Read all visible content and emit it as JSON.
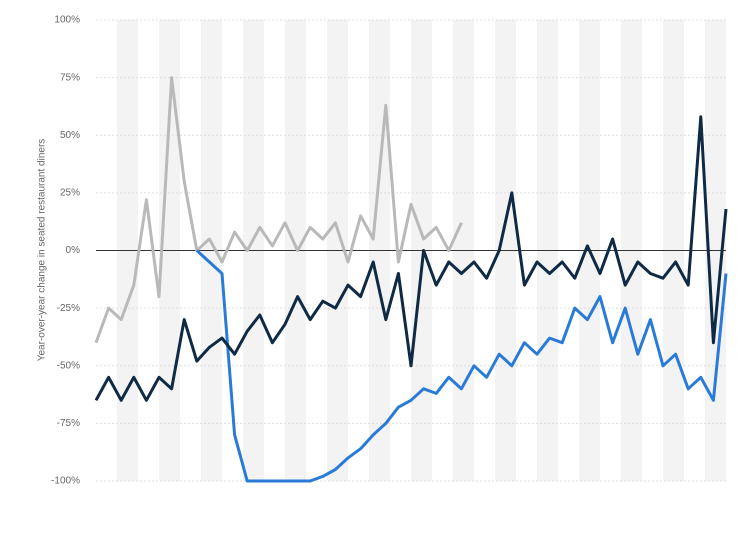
{
  "chart_data": {
    "type": "line",
    "y_label": "Year-over-year change in seated restaurant diners",
    "xlim": [
      0,
      100
    ],
    "ylim": [
      -100,
      100
    ],
    "yticks": [
      {
        "value": -100,
        "label": "-100%"
      },
      {
        "value": -75,
        "label": "-75%"
      },
      {
        "value": -50,
        "label": "-50%"
      },
      {
        "value": -25,
        "label": "-25%"
      },
      {
        "value": 0,
        "label": "0%"
      },
      {
        "value": 25,
        "label": "25%"
      },
      {
        "value": 50,
        "label": "50%"
      },
      {
        "value": 75,
        "label": "75%"
      },
      {
        "value": 100,
        "label": "100%"
      }
    ],
    "grid": true,
    "series": [
      {
        "color": "#b9b9b9",
        "x": [
          0,
          2,
          4,
          6,
          8,
          10,
          12,
          14,
          16,
          18,
          20,
          22,
          24,
          26,
          28,
          30,
          32,
          34,
          36,
          38,
          40,
          42,
          44,
          46,
          48,
          50,
          52,
          54,
          56,
          58
        ],
        "values": [
          -40,
          -25,
          -30,
          -15,
          22,
          -20,
          75,
          30,
          0,
          5,
          -5,
          8,
          0,
          10,
          2,
          12,
          0,
          10,
          5,
          12,
          -5,
          15,
          5,
          63,
          -5,
          20,
          5,
          10,
          0,
          12
        ]
      },
      {
        "color": "#2a7bd8",
        "x": [
          16,
          18,
          20,
          22,
          24,
          26,
          28,
          30,
          32,
          34,
          36,
          38,
          40,
          42,
          44,
          46,
          48,
          50,
          52,
          54,
          56,
          58,
          60,
          62,
          64,
          66,
          68,
          70,
          72,
          74,
          76,
          78,
          80,
          82,
          84,
          86,
          88,
          90,
          92,
          94,
          96,
          98,
          100
        ],
        "values": [
          0,
          -5,
          -10,
          -80,
          -100,
          -100,
          -100,
          -100,
          -100,
          -100,
          -98,
          -95,
          -90,
          -86,
          -80,
          -75,
          -68,
          -65,
          -60,
          -62,
          -55,
          -60,
          -50,
          -55,
          -45,
          -50,
          -40,
          -45,
          -38,
          -40,
          -25,
          -30,
          -20,
          -40,
          -25,
          -45,
          -30,
          -50,
          -45,
          -60,
          -55,
          -65,
          -10
        ]
      },
      {
        "color": "#0f2a44",
        "x": [
          0,
          2,
          4,
          6,
          8,
          10,
          12,
          14,
          16,
          18,
          20,
          22,
          24,
          26,
          28,
          30,
          32,
          34,
          36,
          38,
          40,
          42,
          44,
          46,
          48,
          50,
          52,
          54,
          56,
          58,
          60,
          62,
          64,
          66,
          68,
          70,
          72,
          74,
          76,
          78,
          80,
          82,
          84,
          86,
          88,
          90,
          92,
          94,
          96,
          98,
          100
        ],
        "values": [
          -65,
          -55,
          -65,
          -55,
          -65,
          -55,
          -60,
          -30,
          -48,
          -42,
          -38,
          -45,
          -35,
          -28,
          -40,
          -32,
          -20,
          -30,
          -22,
          -25,
          -15,
          -20,
          -5,
          -30,
          -10,
          -50,
          0,
          -15,
          -5,
          -10,
          -5,
          -12,
          0,
          25,
          -15,
          -5,
          -10,
          -5,
          -12,
          2,
          -10,
          5,
          -15,
          -5,
          -10,
          -12,
          -5,
          -15,
          58,
          -40,
          18
        ]
      }
    ]
  }
}
